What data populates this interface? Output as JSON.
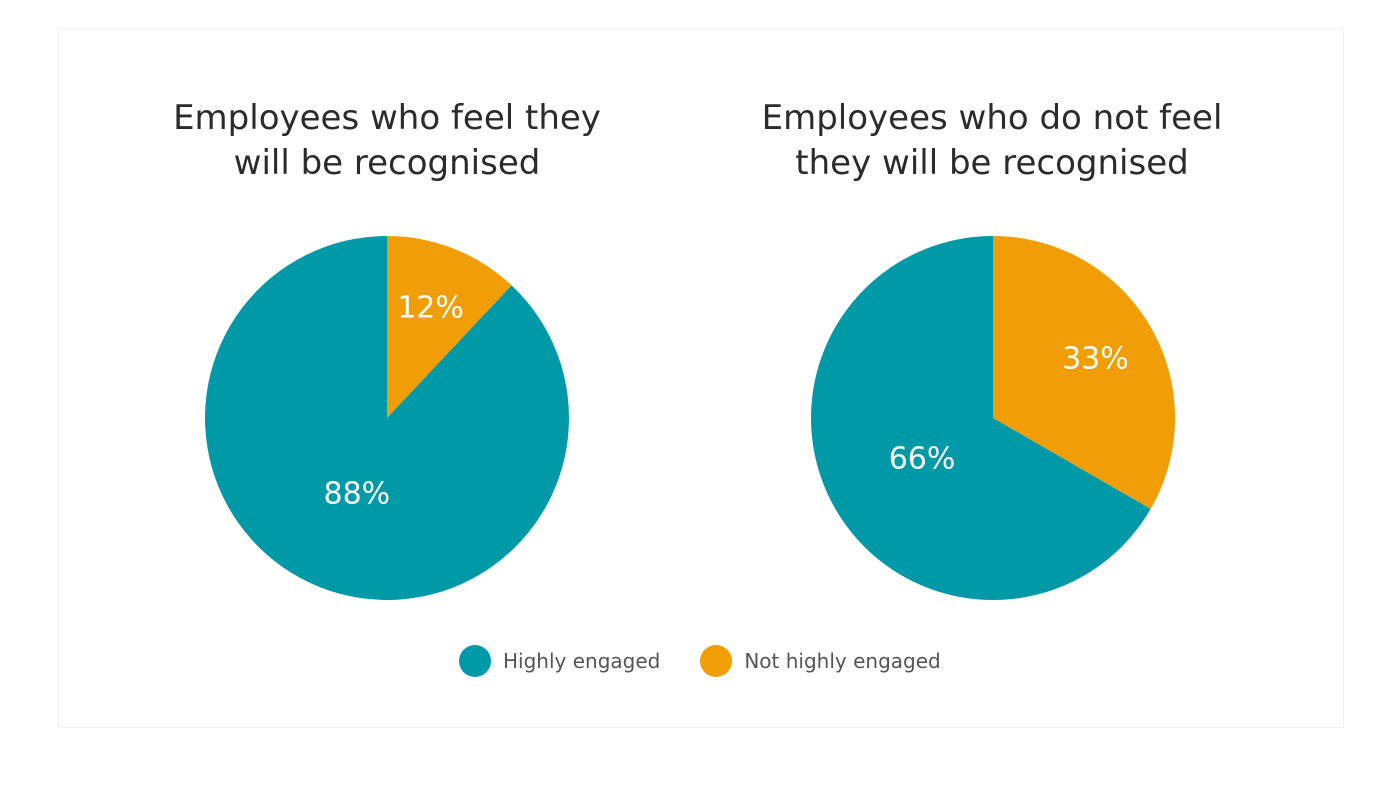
{
  "colors": {
    "highly_engaged": "#0099a8",
    "not_highly_engaged": "#f09d06"
  },
  "legend": {
    "items": [
      {
        "label": "Highly engaged",
        "color": "#0099a8"
      },
      {
        "label": "Not highly engaged",
        "color": "#f09d06"
      }
    ]
  },
  "chart_data": [
    {
      "type": "pie",
      "title": "Employees who feel they will be recognised",
      "title_lines": [
        "Employees who feel they",
        "will be recognised"
      ],
      "slices": [
        {
          "name": "Not highly engaged",
          "value": 12,
          "label": "12%",
          "color": "#f09d06"
        },
        {
          "name": "Highly engaged",
          "value": 88,
          "label": "88%",
          "color": "#0099a8"
        }
      ],
      "legend_position": "bottom"
    },
    {
      "type": "pie",
      "title": "Employees who do not feel they will be recognised",
      "title_lines": [
        "Employees who do not feel",
        "they will be recognised"
      ],
      "slices": [
        {
          "name": "Not highly engaged",
          "value": 33,
          "label": "33%",
          "color": "#f09d06"
        },
        {
          "name": "Highly engaged",
          "value": 66,
          "label": "66%",
          "color": "#0099a8"
        }
      ],
      "legend_position": "bottom"
    }
  ]
}
